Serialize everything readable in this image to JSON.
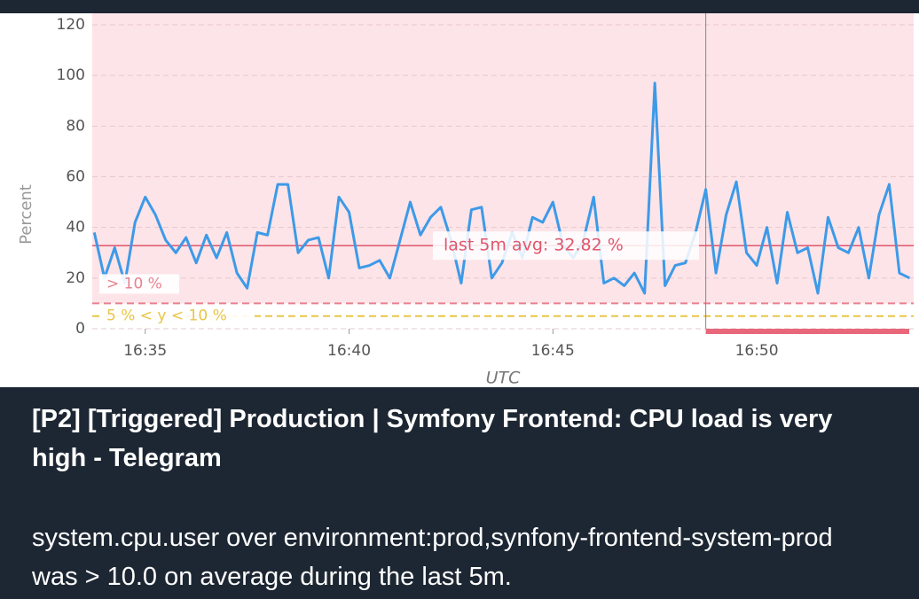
{
  "chart_data": {
    "type": "line",
    "y_label": "Percent",
    "x_label": "UTC",
    "x": [
      33.75,
      34,
      34.25,
      34.5,
      34.75,
      35,
      35.25,
      35.5,
      35.75,
      36,
      36.25,
      36.5,
      36.75,
      37,
      37.25,
      37.5,
      37.75,
      38,
      38.25,
      38.5,
      38.75,
      39,
      39.25,
      39.5,
      39.75,
      40,
      40.25,
      40.5,
      40.75,
      41,
      41.25,
      41.5,
      41.75,
      42,
      42.25,
      42.5,
      42.75,
      43,
      43.25,
      43.5,
      43.75,
      44,
      44.25,
      44.5,
      44.75,
      45,
      45.25,
      45.5,
      45.75,
      46,
      46.25,
      46.5,
      46.75,
      47,
      47.25,
      47.5,
      47.75,
      48,
      48.25,
      48.5,
      48.75,
      49,
      49.25,
      49.5,
      49.75,
      50,
      50.25,
      50.5,
      50.75,
      51,
      51.25,
      51.5,
      51.75,
      52,
      52.25,
      52.5,
      52.75,
      53,
      53.25,
      53.5,
      53.75
    ],
    "series": [
      {
        "name": "system.cpu.user",
        "color": "#3d9ae8",
        "values": [
          38,
          20,
          32,
          18,
          42,
          52,
          45,
          35,
          30,
          36,
          26,
          37,
          28,
          38,
          22,
          16,
          38,
          37,
          57,
          57,
          30,
          35,
          36,
          20,
          52,
          46,
          24,
          25,
          27,
          20,
          35,
          50,
          37,
          44,
          48,
          35,
          18,
          47,
          48,
          20,
          26,
          38,
          28,
          44,
          42,
          50,
          33,
          28,
          35,
          52,
          18,
          20,
          17,
          22,
          14,
          97,
          17,
          25,
          26,
          38,
          55,
          22,
          45,
          58,
          30,
          25,
          40,
          18,
          46,
          30,
          32,
          14,
          44,
          32,
          30,
          40,
          20,
          45,
          57,
          22,
          20
        ]
      }
    ],
    "xlim": [
      33.7,
      53.85
    ],
    "xticks": [
      {
        "value": 35,
        "label": "16:35"
      },
      {
        "value": 40,
        "label": "16:40"
      },
      {
        "value": 45,
        "label": "16:45"
      },
      {
        "value": 50,
        "label": "16:50"
      }
    ],
    "ylim": [
      0,
      120
    ],
    "yticks": [
      0,
      20,
      40,
      60,
      80,
      100,
      120
    ],
    "grid": true,
    "thresholds": [
      {
        "value": 10,
        "label": "> 10 %",
        "color": "#e8818f"
      },
      {
        "value": 5,
        "label": "5 % < y < 10 %",
        "color": "#e8c547"
      }
    ],
    "avg_line": {
      "value": 32.82,
      "label": "last 5m avg: 32.82 %",
      "color": "#e0566c"
    },
    "alert_start": 48.75
  },
  "message": {
    "title": "[P2] [Triggered] Production | Symfony Frontend: CPU load is very high - Telegram",
    "body": "system.cpu.user over environment:prod,synfony-frontend-system-prod was > 10.0 on average during the last 5m."
  }
}
